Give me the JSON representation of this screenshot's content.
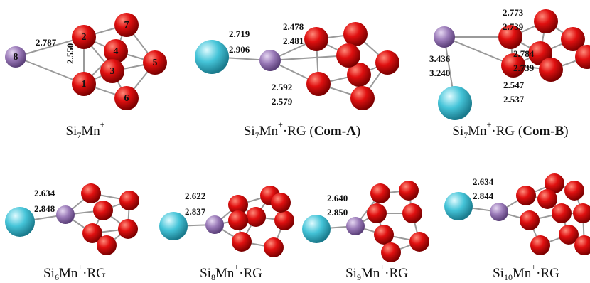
{
  "panels": [
    {
      "caption": [
        "Si",
        "7",
        "Mn",
        "+"
      ],
      "bond_labels": [
        "2.787",
        "2.550"
      ],
      "atom_labels": [
        "8",
        "2",
        "7",
        "4",
        "3",
        "5",
        "1",
        "6"
      ]
    },
    {
      "caption": [
        "Si",
        "7",
        "Mn",
        "+",
        "·RG (",
        "Com-A",
        ")"
      ],
      "bond_labels": [
        "2.719",
        "2.906",
        "2.478",
        "2.481",
        "2.592",
        "2.579"
      ]
    },
    {
      "caption": [
        "Si",
        "7",
        "Mn",
        "+",
        "·RG (",
        "Com-B",
        ")"
      ],
      "bond_labels": [
        "2.773",
        "2.739",
        "3.436",
        "3.240",
        "2.784",
        "2.739",
        "2.547",
        "2.537"
      ]
    },
    {
      "caption": [
        "Si",
        "6",
        "Mn",
        "+",
        "·RG"
      ],
      "bond_labels": [
        "2.634",
        "2.848"
      ]
    },
    {
      "caption": [
        "Si",
        "8",
        "Mn",
        "+",
        "·RG"
      ],
      "bond_labels": [
        "2.622",
        "2.837"
      ]
    },
    {
      "caption": [
        "Si",
        "9",
        "Mn",
        "+",
        "·RG"
      ],
      "bond_labels": [
        "2.640",
        "2.850"
      ]
    },
    {
      "caption": [
        "Si",
        "10",
        "Mn",
        "+",
        "·RG"
      ],
      "bond_labels": [
        "2.634",
        "2.844"
      ]
    }
  ]
}
